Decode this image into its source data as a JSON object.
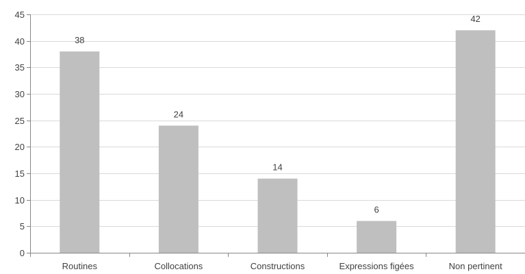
{
  "chart_data": {
    "type": "bar",
    "categories": [
      "Routines",
      "Collocations",
      "Constructions",
      "Expressions figées",
      "Non pertinent"
    ],
    "values": [
      38,
      24,
      14,
      6,
      42
    ],
    "data_labels": [
      "38",
      "24",
      "14",
      "6",
      "42"
    ],
    "title": "",
    "xlabel": "",
    "ylabel": "",
    "ylim": [
      0,
      45
    ],
    "y_ticks": [
      0,
      5,
      10,
      15,
      20,
      25,
      30,
      35,
      40,
      45
    ],
    "grid": true,
    "legend": "none",
    "bar_color": "#bfbfbf"
  }
}
